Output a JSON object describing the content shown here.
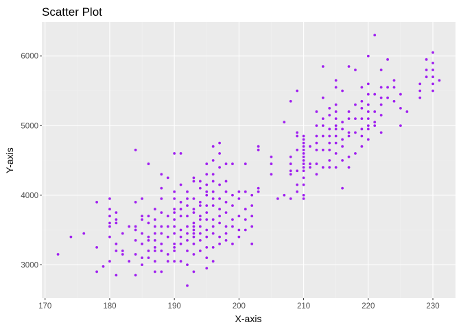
{
  "chart_data": {
    "type": "scatter",
    "title": "Scatter Plot",
    "xlabel": "X-axis",
    "ylabel": "Y-axis",
    "xlim": [
      169.5,
      233.5
    ],
    "ylim": [
      2520,
      6490
    ],
    "x_ticks": [
      170,
      180,
      190,
      200,
      210,
      220,
      230
    ],
    "y_ticks": [
      3000,
      4000,
      5000,
      6000
    ],
    "x_tick_labels": [
      "170",
      "180",
      "190",
      "200",
      "210",
      "220",
      "230"
    ],
    "y_tick_labels": [
      "3000",
      "4000",
      "5000",
      "6000"
    ],
    "grid": true,
    "legend": "none",
    "colors": {
      "point": "#a020f0",
      "panel": "#ebebeb",
      "grid_major": "#ffffff",
      "grid_minor": "#f2f2f2"
    },
    "points": [
      [
        172,
        3150
      ],
      [
        174,
        3400
      ],
      [
        176,
        3450
      ],
      [
        178,
        3900
      ],
      [
        178,
        3250
      ],
      [
        178,
        2900
      ],
      [
        179,
        2975
      ],
      [
        180,
        3950
      ],
      [
        180,
        3800
      ],
      [
        180,
        3700
      ],
      [
        180,
        3600
      ],
      [
        180,
        3550
      ],
      [
        180,
        3400
      ],
      [
        180,
        3050
      ],
      [
        181,
        3750
      ],
      [
        181,
        3650
      ],
      [
        181,
        3600
      ],
      [
        181,
        3300
      ],
      [
        181,
        3200
      ],
      [
        181,
        2850
      ],
      [
        182,
        3450
      ],
      [
        182,
        3200
      ],
      [
        182,
        3150
      ],
      [
        183,
        3550
      ],
      [
        183,
        3050
      ],
      [
        184,
        4650
      ],
      [
        184,
        3900
      ],
      [
        184,
        3550
      ],
      [
        184,
        3500
      ],
      [
        184,
        3350
      ],
      [
        184,
        3150
      ],
      [
        184,
        2850
      ],
      [
        185,
        3950
      ],
      [
        185,
        3700
      ],
      [
        185,
        3650
      ],
      [
        185,
        3450
      ],
      [
        185,
        3300
      ],
      [
        185,
        3100
      ],
      [
        185,
        3000
      ],
      [
        186,
        4450
      ],
      [
        186,
        3700
      ],
      [
        186,
        3600
      ],
      [
        186,
        3400
      ],
      [
        186,
        3350
      ],
      [
        186,
        3200
      ],
      [
        186,
        3100
      ],
      [
        187,
        3800
      ],
      [
        187,
        3650
      ],
      [
        187,
        3550
      ],
      [
        187,
        3450
      ],
      [
        187,
        3350
      ],
      [
        187,
        3250
      ],
      [
        187,
        3200
      ],
      [
        187,
        3050
      ],
      [
        187,
        2900
      ],
      [
        188,
        4300
      ],
      [
        188,
        4100
      ],
      [
        188,
        3950
      ],
      [
        188,
        3750
      ],
      [
        188,
        3550
      ],
      [
        188,
        3450
      ],
      [
        188,
        3300
      ],
      [
        188,
        3200
      ],
      [
        188,
        2900
      ],
      [
        189,
        4250
      ],
      [
        189,
        3700
      ],
      [
        189,
        3550
      ],
      [
        189,
        3400
      ],
      [
        189,
        3150
      ],
      [
        189,
        3050
      ],
      [
        190,
        4600
      ],
      [
        190,
        4050
      ],
      [
        190,
        3950
      ],
      [
        190,
        3800
      ],
      [
        190,
        3750
      ],
      [
        190,
        3650
      ],
      [
        190,
        3550
      ],
      [
        190,
        3450
      ],
      [
        190,
        3300
      ],
      [
        190,
        3250
      ],
      [
        190,
        3200
      ],
      [
        190,
        3050
      ],
      [
        191,
        4600
      ],
      [
        191,
        4150
      ],
      [
        191,
        3900
      ],
      [
        191,
        3800
      ],
      [
        191,
        3700
      ],
      [
        191,
        3500
      ],
      [
        191,
        3400
      ],
      [
        191,
        3300
      ],
      [
        191,
        3050
      ],
      [
        192,
        4050
      ],
      [
        192,
        3950
      ],
      [
        192,
        3850
      ],
      [
        192,
        3700
      ],
      [
        192,
        3550
      ],
      [
        192,
        3450
      ],
      [
        192,
        3350
      ],
      [
        192,
        3200
      ],
      [
        192,
        3000
      ],
      [
        192,
        2700
      ],
      [
        193,
        4250
      ],
      [
        193,
        4200
      ],
      [
        193,
        3950
      ],
      [
        193,
        3800
      ],
      [
        193,
        3750
      ],
      [
        193,
        3600
      ],
      [
        193,
        3550
      ],
      [
        193,
        3500
      ],
      [
        193,
        3450
      ],
      [
        193,
        3400
      ],
      [
        193,
        3300
      ],
      [
        193,
        3150
      ],
      [
        193,
        2900
      ],
      [
        194,
        4200
      ],
      [
        194,
        4100
      ],
      [
        194,
        3900
      ],
      [
        194,
        3850
      ],
      [
        194,
        3700
      ],
      [
        194,
        3650
      ],
      [
        194,
        3550
      ],
      [
        194,
        3450
      ],
      [
        194,
        3350
      ],
      [
        194,
        3200
      ],
      [
        195,
        4450
      ],
      [
        195,
        4300
      ],
      [
        195,
        4150
      ],
      [
        195,
        4050
      ],
      [
        195,
        4000
      ],
      [
        195,
        3850
      ],
      [
        195,
        3750
      ],
      [
        195,
        3650
      ],
      [
        195,
        3500
      ],
      [
        195,
        3400
      ],
      [
        195,
        3250
      ],
      [
        195,
        3100
      ],
      [
        195,
        2950
      ],
      [
        196,
        4700
      ],
      [
        196,
        4500
      ],
      [
        196,
        4300
      ],
      [
        196,
        4200
      ],
      [
        196,
        4050
      ],
      [
        196,
        3950
      ],
      [
        196,
        3850
      ],
      [
        196,
        3650
      ],
      [
        196,
        3550
      ],
      [
        196,
        3450
      ],
      [
        196,
        3250
      ],
      [
        196,
        3050
      ],
      [
        197,
        4750
      ],
      [
        197,
        4600
      ],
      [
        197,
        4400
      ],
      [
        197,
        4150
      ],
      [
        197,
        3950
      ],
      [
        197,
        3800
      ],
      [
        197,
        3700
      ],
      [
        197,
        3600
      ],
      [
        197,
        3400
      ],
      [
        197,
        3300
      ],
      [
        198,
        4450
      ],
      [
        198,
        4200
      ],
      [
        198,
        4050
      ],
      [
        198,
        3900
      ],
      [
        198,
        3750
      ],
      [
        198,
        3550
      ],
      [
        198,
        3450
      ],
      [
        198,
        3350
      ],
      [
        199,
        4450
      ],
      [
        199,
        4000
      ],
      [
        199,
        3850
      ],
      [
        199,
        3650
      ],
      [
        199,
        3550
      ],
      [
        199,
        3300
      ],
      [
        200,
        4050
      ],
      [
        200,
        3950
      ],
      [
        200,
        3700
      ],
      [
        200,
        3500
      ],
      [
        200,
        3400
      ],
      [
        201,
        4450
      ],
      [
        201,
        4050
      ],
      [
        201,
        3800
      ],
      [
        201,
        3650
      ],
      [
        201,
        3500
      ],
      [
        202,
        4000
      ],
      [
        202,
        3850
      ],
      [
        202,
        3700
      ],
      [
        202,
        3550
      ],
      [
        202,
        3300
      ],
      [
        203,
        4700
      ],
      [
        203,
        4650
      ],
      [
        203,
        4100
      ],
      [
        203,
        4050
      ],
      [
        205,
        4550
      ],
      [
        205,
        4450
      ],
      [
        205,
        4300
      ],
      [
        206,
        3950
      ],
      [
        207,
        5050
      ],
      [
        207,
        4000
      ],
      [
        208,
        5350
      ],
      [
        208,
        4550
      ],
      [
        208,
        4450
      ],
      [
        208,
        4350
      ],
      [
        208,
        4300
      ],
      [
        208,
        3950
      ],
      [
        209,
        5500
      ],
      [
        209,
        4900
      ],
      [
        209,
        4850
      ],
      [
        209,
        4650
      ],
      [
        209,
        4350
      ],
      [
        209,
        4150
      ],
      [
        209,
        4050
      ],
      [
        210,
        4850
      ],
      [
        210,
        4800
      ],
      [
        210,
        4750
      ],
      [
        210,
        4700
      ],
      [
        210,
        4650
      ],
      [
        210,
        4600
      ],
      [
        210,
        4550
      ],
      [
        210,
        4500
      ],
      [
        210,
        4450
      ],
      [
        210,
        4400
      ],
      [
        210,
        4350
      ],
      [
        210,
        4250
      ],
      [
        210,
        4150
      ],
      [
        210,
        4000
      ],
      [
        210,
        3950
      ],
      [
        211,
        4700
      ],
      [
        211,
        4450
      ],
      [
        211,
        4400
      ],
      [
        212,
        5200
      ],
      [
        212,
        5000
      ],
      [
        212,
        4850
      ],
      [
        212,
        4750
      ],
      [
        212,
        4650
      ],
      [
        212,
        4450
      ],
      [
        212,
        4300
      ],
      [
        213,
        5850
      ],
      [
        213,
        5400
      ],
      [
        213,
        5100
      ],
      [
        213,
        5000
      ],
      [
        213,
        4850
      ],
      [
        213,
        4650
      ],
      [
        213,
        4400
      ],
      [
        214,
        5250
      ],
      [
        214,
        5150
      ],
      [
        214,
        4950
      ],
      [
        214,
        4850
      ],
      [
        214,
        4750
      ],
      [
        214,
        4650
      ],
      [
        214,
        4500
      ],
      [
        214,
        4400
      ],
      [
        215,
        5650
      ],
      [
        215,
        5550
      ],
      [
        215,
        5300
      ],
      [
        215,
        5200
      ],
      [
        215,
        5100
      ],
      [
        215,
        5000
      ],
      [
        215,
        4950
      ],
      [
        215,
        4850
      ],
      [
        215,
        4750
      ],
      [
        215,
        4600
      ],
      [
        215,
        4400
      ],
      [
        216,
        5500
      ],
      [
        216,
        5050
      ],
      [
        216,
        4950
      ],
      [
        216,
        4800
      ],
      [
        216,
        4700
      ],
      [
        216,
        4500
      ],
      [
        216,
        4100
      ],
      [
        217,
        5850
      ],
      [
        217,
        5200
      ],
      [
        217,
        5100
      ],
      [
        217,
        4900
      ],
      [
        217,
        4850
      ],
      [
        217,
        4550
      ],
      [
        217,
        4400
      ],
      [
        218,
        5800
      ],
      [
        218,
        5300
      ],
      [
        218,
        5100
      ],
      [
        218,
        4900
      ],
      [
        218,
        4600
      ],
      [
        219,
        5550
      ],
      [
        219,
        5350
      ],
      [
        219,
        5250
      ],
      [
        219,
        5100
      ],
      [
        219,
        4950
      ],
      [
        219,
        4850
      ],
      [
        219,
        4700
      ],
      [
        220,
        6000
      ],
      [
        220,
        5600
      ],
      [
        220,
        5450
      ],
      [
        220,
        5300
      ],
      [
        220,
        5200
      ],
      [
        220,
        5100
      ],
      [
        220,
        5000
      ],
      [
        220,
        4950
      ],
      [
        220,
        4800
      ],
      [
        221,
        6300
      ],
      [
        221,
        5450
      ],
      [
        221,
        5200
      ],
      [
        221,
        5050
      ],
      [
        221,
        5000
      ],
      [
        222,
        5800
      ],
      [
        222,
        5550
      ],
      [
        222,
        5400
      ],
      [
        222,
        5300
      ],
      [
        222,
        5150
      ],
      [
        222,
        4900
      ],
      [
        223,
        5950
      ],
      [
        223,
        5550
      ],
      [
        223,
        5400
      ],
      [
        224,
        5650
      ],
      [
        224,
        5550
      ],
      [
        224,
        5350
      ],
      [
        225,
        5450
      ],
      [
        225,
        5250
      ],
      [
        225,
        5000
      ],
      [
        226,
        5200
      ],
      [
        228,
        5600
      ],
      [
        228,
        5500
      ],
      [
        228,
        5400
      ],
      [
        229,
        5950
      ],
      [
        229,
        5800
      ],
      [
        229,
        5700
      ],
      [
        230,
        6050
      ],
      [
        230,
        5900
      ],
      [
        230,
        5800
      ],
      [
        230,
        5700
      ],
      [
        230,
        5600
      ],
      [
        230,
        5500
      ],
      [
        231,
        5650
      ]
    ]
  }
}
